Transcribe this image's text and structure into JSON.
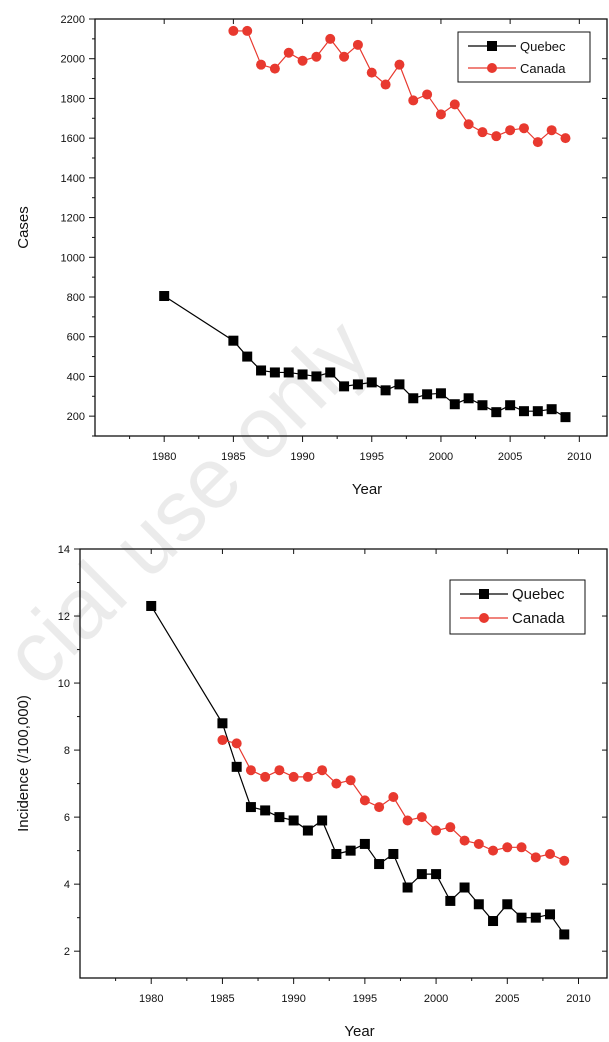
{
  "watermark": "cial use only",
  "chart_data": [
    {
      "type": "line",
      "xlabel": "Year",
      "ylabel": "Cases",
      "xlim": [
        1975,
        2012
      ],
      "ylim": [
        100,
        2200
      ],
      "xticks": [
        1980,
        1985,
        1990,
        1995,
        2000,
        2005,
        2010
      ],
      "yticks": [
        200,
        400,
        600,
        800,
        1000,
        1200,
        1400,
        1600,
        1800,
        2000,
        2200
      ],
      "legend_position": "top-right",
      "series": [
        {
          "name": "Quebec",
          "color": "#000000",
          "marker": "square",
          "x": [
            1980,
            1985,
            1986,
            1987,
            1988,
            1989,
            1990,
            1991,
            1992,
            1993,
            1994,
            1995,
            1996,
            1997,
            1998,
            1999,
            2000,
            2001,
            2002,
            2003,
            2004,
            2005,
            2006,
            2007,
            2008,
            2009
          ],
          "values": [
            805,
            580,
            500,
            430,
            420,
            420,
            410,
            400,
            420,
            350,
            360,
            370,
            330,
            360,
            290,
            310,
            315,
            260,
            290,
            255,
            220,
            255,
            225,
            225,
            235,
            195
          ]
        },
        {
          "name": "Canada",
          "color": "#e8392f",
          "marker": "circle",
          "x": [
            1985,
            1986,
            1987,
            1988,
            1989,
            1990,
            1991,
            1992,
            1993,
            1994,
            1995,
            1996,
            1997,
            1998,
            1999,
            2000,
            2001,
            2002,
            2003,
            2004,
            2005,
            2006,
            2007,
            2008,
            2009
          ],
          "values": [
            2140,
            2140,
            1970,
            1950,
            2030,
            1990,
            2010,
            2100,
            2010,
            2070,
            1930,
            1870,
            1970,
            1790,
            1820,
            1720,
            1770,
            1670,
            1630,
            1610,
            1640,
            1650,
            1580,
            1640,
            1600
          ]
        }
      ]
    },
    {
      "type": "line",
      "xlabel": "Year",
      "ylabel": "Incidence (/100,000)",
      "xlim": [
        1975,
        2012
      ],
      "ylim": [
        1.2,
        14
      ],
      "xticks": [
        1980,
        1985,
        1990,
        1995,
        2000,
        2005,
        2010
      ],
      "yticks": [
        2,
        4,
        6,
        8,
        10,
        12,
        14
      ],
      "legend_position": "top-right",
      "series": [
        {
          "name": "Quebec",
          "color": "#000000",
          "marker": "square",
          "x": [
            1980,
            1985,
            1986,
            1987,
            1988,
            1989,
            1990,
            1991,
            1992,
            1993,
            1994,
            1995,
            1996,
            1997,
            1998,
            1999,
            2000,
            2001,
            2002,
            2003,
            2004,
            2005,
            2006,
            2007,
            2008,
            2009
          ],
          "values": [
            12.3,
            8.8,
            7.5,
            6.3,
            6.2,
            6.0,
            5.9,
            5.6,
            5.9,
            4.9,
            5.0,
            5.2,
            4.6,
            4.9,
            3.9,
            4.3,
            4.3,
            3.5,
            3.9,
            3.4,
            2.9,
            3.4,
            3.0,
            3.0,
            3.1,
            2.5
          ]
        },
        {
          "name": "Canada",
          "color": "#e8392f",
          "marker": "circle",
          "x": [
            1985,
            1986,
            1987,
            1988,
            1989,
            1990,
            1991,
            1992,
            1993,
            1994,
            1995,
            1996,
            1997,
            1998,
            1999,
            2000,
            2001,
            2002,
            2003,
            2004,
            2005,
            2006,
            2007,
            2008,
            2009
          ],
          "values": [
            8.3,
            8.2,
            7.4,
            7.2,
            7.4,
            7.2,
            7.2,
            7.4,
            7.0,
            7.1,
            6.5,
            6.3,
            6.6,
            5.9,
            6.0,
            5.6,
            5.7,
            5.3,
            5.2,
            5.0,
            5.1,
            5.1,
            4.8,
            4.9,
            4.7
          ]
        }
      ]
    }
  ]
}
